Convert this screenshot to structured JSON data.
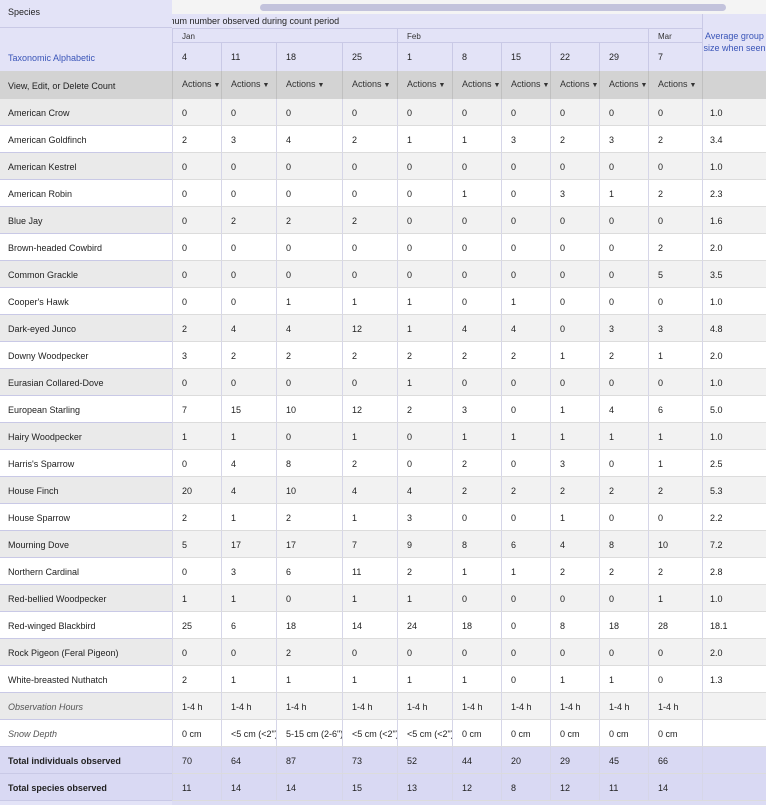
{
  "header": {
    "species_label": "Species",
    "taxonomic_label": "Taxonomic Alphabetic",
    "view_edit_label": "View, Edit, or Delete Count",
    "title": "Maximum number observed during count period",
    "avg_label": "Average group size when seen",
    "actions_label": "Actions",
    "months": [
      "Jan",
      "Feb",
      "Mar"
    ],
    "dates": [
      "4",
      "11",
      "18",
      "25",
      "1",
      "8",
      "15",
      "22",
      "29",
      "7"
    ]
  },
  "rows": [
    {
      "name": "American Crow",
      "values": [
        "0",
        "0",
        "0",
        "0",
        "0",
        "0",
        "0",
        "0",
        "0",
        "0"
      ],
      "avg": "1.0"
    },
    {
      "name": "American Goldfinch",
      "values": [
        "2",
        "3",
        "4",
        "2",
        "1",
        "1",
        "3",
        "2",
        "3",
        "2"
      ],
      "avg": "3.4"
    },
    {
      "name": "American Kestrel",
      "values": [
        "0",
        "0",
        "0",
        "0",
        "0",
        "0",
        "0",
        "0",
        "0",
        "0"
      ],
      "avg": "1.0"
    },
    {
      "name": "American Robin",
      "values": [
        "0",
        "0",
        "0",
        "0",
        "0",
        "1",
        "0",
        "3",
        "1",
        "2"
      ],
      "avg": "2.3"
    },
    {
      "name": "Blue Jay",
      "values": [
        "0",
        "2",
        "2",
        "2",
        "0",
        "0",
        "0",
        "0",
        "0",
        "0"
      ],
      "avg": "1.6"
    },
    {
      "name": "Brown-headed Cowbird",
      "values": [
        "0",
        "0",
        "0",
        "0",
        "0",
        "0",
        "0",
        "0",
        "0",
        "2"
      ],
      "avg": "2.0"
    },
    {
      "name": "Common Grackle",
      "values": [
        "0",
        "0",
        "0",
        "0",
        "0",
        "0",
        "0",
        "0",
        "0",
        "5"
      ],
      "avg": "3.5"
    },
    {
      "name": "Cooper's Hawk",
      "values": [
        "0",
        "0",
        "1",
        "1",
        "1",
        "0",
        "1",
        "0",
        "0",
        "0"
      ],
      "avg": "1.0"
    },
    {
      "name": "Dark-eyed Junco",
      "values": [
        "2",
        "4",
        "4",
        "12",
        "1",
        "4",
        "4",
        "0",
        "3",
        "3"
      ],
      "avg": "4.8"
    },
    {
      "name": "Downy Woodpecker",
      "values": [
        "3",
        "2",
        "2",
        "2",
        "2",
        "2",
        "2",
        "1",
        "2",
        "1"
      ],
      "avg": "2.0"
    },
    {
      "name": "Eurasian Collared-Dove",
      "values": [
        "0",
        "0",
        "0",
        "0",
        "1",
        "0",
        "0",
        "0",
        "0",
        "0"
      ],
      "avg": "1.0"
    },
    {
      "name": "European Starling",
      "values": [
        "7",
        "15",
        "10",
        "12",
        "2",
        "3",
        "0",
        "1",
        "4",
        "6"
      ],
      "avg": "5.0"
    },
    {
      "name": "Hairy Woodpecker",
      "values": [
        "1",
        "1",
        "0",
        "1",
        "0",
        "1",
        "1",
        "1",
        "1",
        "1"
      ],
      "avg": "1.0"
    },
    {
      "name": "Harris's Sparrow",
      "values": [
        "0",
        "4",
        "8",
        "2",
        "0",
        "2",
        "0",
        "3",
        "0",
        "1"
      ],
      "avg": "2.5"
    },
    {
      "name": "House Finch",
      "values": [
        "20",
        "4",
        "10",
        "4",
        "4",
        "2",
        "2",
        "2",
        "2",
        "2"
      ],
      "avg": "5.3"
    },
    {
      "name": "House Sparrow",
      "values": [
        "2",
        "1",
        "2",
        "1",
        "3",
        "0",
        "0",
        "1",
        "0",
        "0"
      ],
      "avg": "2.2"
    },
    {
      "name": "Mourning Dove",
      "values": [
        "5",
        "17",
        "17",
        "7",
        "9",
        "8",
        "6",
        "4",
        "8",
        "10"
      ],
      "avg": "7.2"
    },
    {
      "name": "Northern Cardinal",
      "values": [
        "0",
        "3",
        "6",
        "11",
        "2",
        "1",
        "1",
        "2",
        "2",
        "2"
      ],
      "avg": "2.8"
    },
    {
      "name": "Red-bellied Woodpecker",
      "values": [
        "1",
        "1",
        "0",
        "1",
        "1",
        "0",
        "0",
        "0",
        "0",
        "1"
      ],
      "avg": "1.0"
    },
    {
      "name": "Red-winged Blackbird",
      "values": [
        "25",
        "6",
        "18",
        "14",
        "24",
        "18",
        "0",
        "8",
        "18",
        "28"
      ],
      "avg": "18.1"
    },
    {
      "name": "Rock Pigeon (Feral Pigeon)",
      "values": [
        "0",
        "0",
        "2",
        "0",
        "0",
        "0",
        "0",
        "0",
        "0",
        "0"
      ],
      "avg": "2.0"
    },
    {
      "name": "White-breasted Nuthatch",
      "values": [
        "2",
        "1",
        "1",
        "1",
        "1",
        "1",
        "0",
        "1",
        "1",
        "0"
      ],
      "avg": "1.3"
    },
    {
      "name": "Observation Hours",
      "values": [
        "1-4 h",
        "1-4 h",
        "1-4 h",
        "1-4 h",
        "1-4 h",
        "1-4 h",
        "1-4 h",
        "1-4 h",
        "1-4 h",
        "1-4 h"
      ],
      "avg": "",
      "kind": "note"
    },
    {
      "name": "Snow Depth",
      "values": [
        "0 cm",
        "<5 cm (<2\")",
        "5-15 cm (2-6\")",
        "<5 cm (<2\")",
        "<5 cm (<2\")",
        "0 cm",
        "0 cm",
        "0 cm",
        "0 cm",
        "0 cm"
      ],
      "avg": "",
      "kind": "note"
    },
    {
      "name": "Total individuals observed",
      "values": [
        "70",
        "64",
        "87",
        "73",
        "52",
        "44",
        "20",
        "29",
        "45",
        "66"
      ],
      "avg": "",
      "kind": "total"
    },
    {
      "name": "Total species observed",
      "values": [
        "11",
        "14",
        "14",
        "15",
        "13",
        "12",
        "8",
        "12",
        "11",
        "14"
      ],
      "avg": "",
      "kind": "total"
    }
  ]
}
